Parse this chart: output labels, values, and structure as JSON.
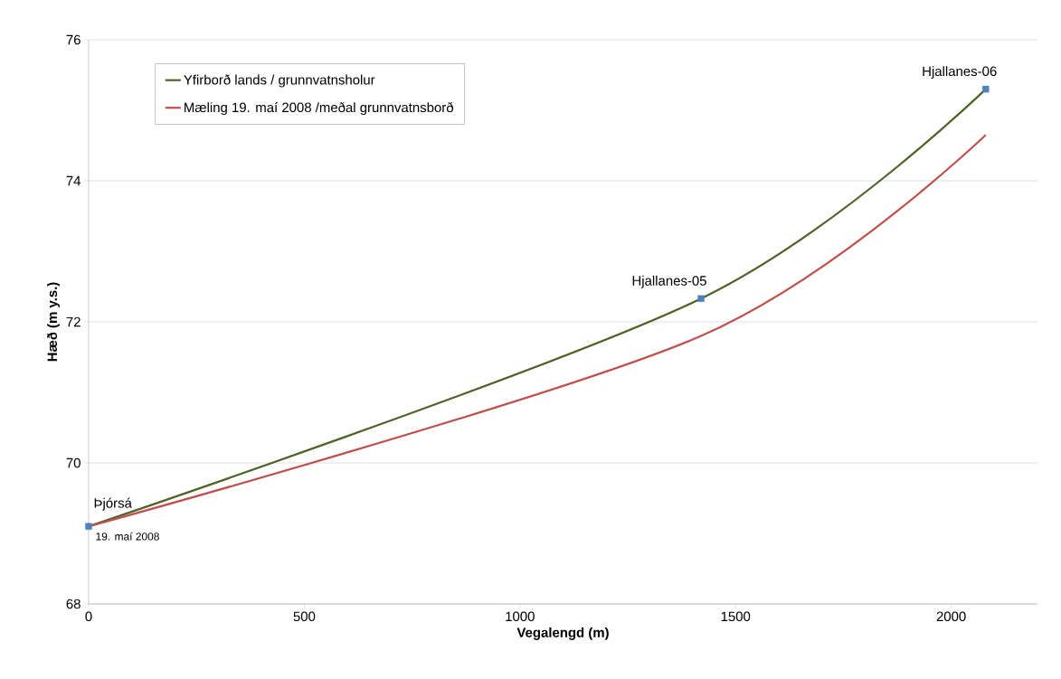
{
  "chart_data": {
    "type": "line",
    "xlabel": "Vegalengd (m)",
    "ylabel": "Hæð (m y.s.)",
    "x": [
      0,
      1420,
      2080
    ],
    "series": [
      {
        "name": "Yfirborð lands / grunnvatnsholur",
        "color": "#4f6228",
        "colors": [
          "#4f81bd",
          "#4f81bd",
          "#4f81bd"
        ],
        "marker": "square",
        "values": [
          69.1,
          72.33,
          75.3
        ]
      },
      {
        "name": "Mæling 19. maí 2008 /meðal grunnvatnsborð",
        "color": "#c0504d",
        "marker": "none",
        "values": [
          69.1,
          71.8,
          74.65
        ]
      }
    ],
    "xlim": [
      0,
      2200
    ],
    "ylim": [
      68,
      76
    ],
    "xticks": [
      0,
      500,
      1000,
      1500,
      2000
    ],
    "yticks": [
      68,
      70,
      72,
      74,
      76
    ],
    "grid": "y",
    "legend": "top left",
    "line_style": "solid",
    "annotations": [
      {
        "text": "Þjórsá",
        "x": 0,
        "y": 69.1
      },
      {
        "text": "19. maí 2008",
        "x": 0,
        "y": 69.1
      },
      {
        "text": "Hjallanes-05",
        "x": 1420,
        "y": 72.33
      },
      {
        "text": "Hjallanes-06",
        "x": 2080,
        "y": 75.3
      }
    ]
  }
}
